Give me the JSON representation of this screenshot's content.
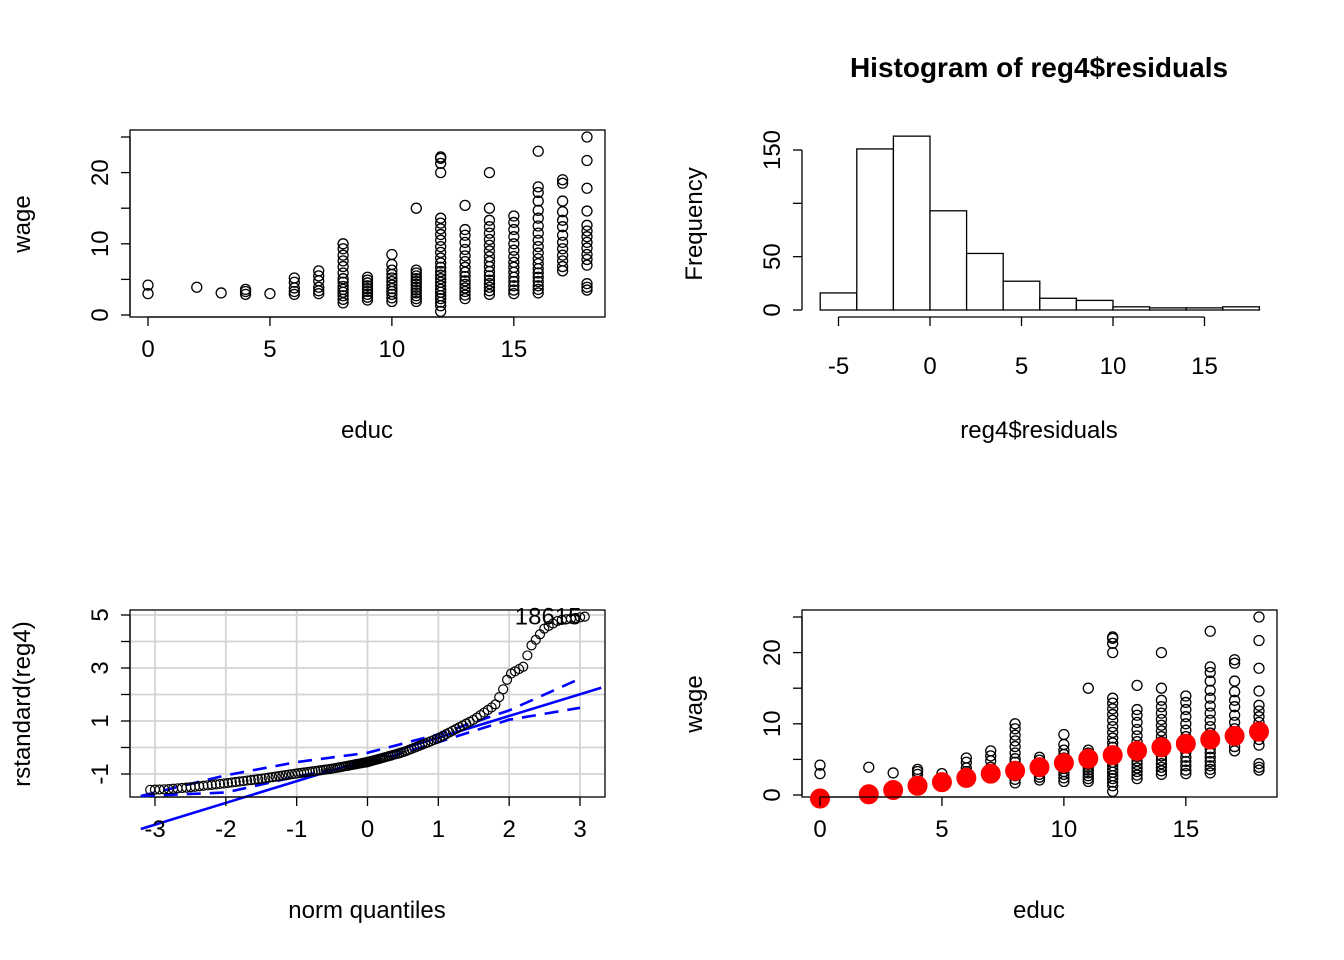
{
  "colors": {
    "points": "#000000",
    "fit_line": "#0000FF",
    "grid": "#D3D3D3",
    "means": "#FF0000"
  },
  "chart_data": [
    {
      "id": "wage-vs-educ",
      "type": "scatter",
      "title": "",
      "xlabel": "educ",
      "ylabel": "wage",
      "xlim": [
        0,
        18
      ],
      "ylim": [
        0,
        25
      ],
      "x_ticks": [
        0,
        5,
        10,
        15
      ],
      "y_ticks": [
        0,
        10,
        20
      ],
      "groups": [
        {
          "x": 0,
          "y": [
            3.0,
            4.2
          ]
        },
        {
          "x": 2,
          "y": [
            3.9
          ]
        },
        {
          "x": 3,
          "y": [
            3.1
          ]
        },
        {
          "x": 4,
          "y": [
            2.9,
            3.3,
            3.6
          ]
        },
        {
          "x": 5,
          "y": [
            3.0
          ]
        },
        {
          "x": 6,
          "y": [
            2.9,
            3.3,
            3.8,
            4.6,
            5.2
          ]
        },
        {
          "x": 7,
          "y": [
            3.0,
            3.4,
            3.9,
            4.8,
            5.5,
            6.2
          ]
        },
        {
          "x": 8,
          "y": [
            1.7,
            2.2,
            2.7,
            3.2,
            3.6,
            4.0,
            4.6,
            5.1,
            5.9,
            6.8,
            7.6,
            8.4,
            9.3,
            10.0
          ]
        },
        {
          "x": 9,
          "y": [
            2.1,
            2.5,
            2.9,
            3.3,
            3.7,
            4.1,
            4.5,
            4.9,
            5.3
          ]
        },
        {
          "x": 10,
          "y": [
            1.9,
            2.4,
            2.9,
            3.3,
            3.7,
            4.2,
            4.7,
            5.2,
            5.7,
            6.3,
            7.1,
            8.5
          ]
        },
        {
          "x": 11,
          "y": [
            1.9,
            2.3,
            2.7,
            3.1,
            3.5,
            3.9,
            4.3,
            4.7,
            5.1,
            5.5,
            5.9,
            6.3,
            15.0
          ]
        },
        {
          "x": 12,
          "y": [
            0.5,
            1.3,
            1.8,
            2.3,
            2.7,
            3.2,
            3.6,
            4.1,
            4.6,
            5.1,
            5.6,
            6.1,
            6.7,
            7.3,
            8.0,
            8.8,
            9.6,
            10.5,
            11.3,
            12.1,
            12.9,
            13.6,
            20.0,
            21.3,
            22.0,
            22.2
          ]
        },
        {
          "x": 13,
          "y": [
            2.3,
            2.8,
            3.3,
            3.8,
            4.3,
            4.8,
            5.4,
            6.0,
            6.7,
            7.5,
            8.3,
            9.2,
            10.2,
            11.2,
            12.0,
            15.4
          ]
        },
        {
          "x": 14,
          "y": [
            2.9,
            3.4,
            3.9,
            4.4,
            4.9,
            5.5,
            6.1,
            6.8,
            7.5,
            8.2,
            9.0,
            9.8,
            10.6,
            11.5,
            12.4,
            13.3,
            15.0,
            20.0
          ]
        },
        {
          "x": 15,
          "y": [
            3.0,
            3.5,
            4.1,
            4.7,
            5.3,
            6.0,
            6.7,
            7.4,
            8.2,
            9.1,
            10.0,
            11.0,
            12.0,
            13.0,
            13.9
          ]
        },
        {
          "x": 16,
          "y": [
            3.1,
            3.6,
            4.1,
            4.7,
            5.3,
            5.9,
            6.5,
            7.2,
            7.9,
            8.7,
            9.6,
            10.5,
            11.5,
            12.5,
            13.6,
            14.7,
            16.0,
            17.2,
            18.0,
            23.0
          ]
        },
        {
          "x": 17,
          "y": [
            6.2,
            6.8,
            7.6,
            8.4,
            9.3,
            10.2,
            11.2,
            12.4,
            13.3,
            14.5,
            16.0,
            18.5,
            19.0
          ]
        },
        {
          "x": 18,
          "y": [
            3.5,
            3.9,
            4.4,
            7.0,
            7.8,
            8.5,
            9.4,
            10.2,
            11.0,
            11.8,
            12.6,
            14.6,
            17.8,
            21.7,
            25.0
          ]
        }
      ]
    },
    {
      "id": "residual-histogram",
      "type": "bar",
      "title": "Histogram of reg4$residuals",
      "xlabel": "reg4$residuals",
      "ylabel": "Frequency",
      "xlim": [
        -6,
        18
      ],
      "ylim": [
        0,
        165
      ],
      "x_ticks": [
        -5,
        0,
        5,
        10,
        15
      ],
      "y_ticks": [
        0,
        50,
        100,
        150
      ],
      "y_tick_labels": [
        "0",
        "50",
        "",
        "150"
      ],
      "bin_width": 2,
      "bin_starts": [
        -6,
        -4,
        -2,
        0,
        2,
        4,
        6,
        8,
        10,
        12,
        14,
        16
      ],
      "values": [
        16,
        151,
        163,
        93,
        53,
        27,
        11,
        9,
        3,
        2,
        2,
        3
      ]
    },
    {
      "id": "qq-plot",
      "type": "scatter",
      "title": "",
      "xlabel": "norm quantiles",
      "ylabel": "rstandard(reg4)",
      "xlim": [
        -3.2,
        3.3
      ],
      "ylim": [
        -1.8,
        5.1
      ],
      "x_ticks": [
        -3,
        -2,
        -1,
        0,
        1,
        2,
        3
      ],
      "y_ticks": [
        -1,
        1,
        3,
        5
      ],
      "y_minor_ticks": [
        -1,
        0,
        1,
        2,
        3,
        4,
        5
      ],
      "curve_knots": [
        [
          -3.1,
          -1.6
        ],
        [
          -2.8,
          -1.57
        ],
        [
          -2.5,
          -1.5
        ],
        [
          -2.0,
          -1.35
        ],
        [
          -1.5,
          -1.18
        ],
        [
          -1.0,
          -0.98
        ],
        [
          -0.5,
          -0.8
        ],
        [
          0.0,
          -0.55
        ],
        [
          0.5,
          -0.18
        ],
        [
          1.0,
          0.35
        ],
        [
          1.5,
          1.05
        ],
        [
          1.8,
          1.6
        ],
        [
          1.9,
          2.1
        ],
        [
          2.0,
          2.75
        ],
        [
          2.2,
          3.05
        ],
        [
          2.3,
          3.8
        ],
        [
          2.5,
          4.5
        ],
        [
          2.7,
          4.8
        ],
        [
          3.1,
          4.95
        ]
      ],
      "point_count": 150,
      "fit_line": {
        "intercept": -0.45,
        "slope": 0.82
      },
      "envelope_upper": [
        [
          -3.2,
          -1.95
        ],
        [
          -2.0,
          -1.05
        ],
        [
          -1.0,
          -0.55
        ],
        [
          0.0,
          -0.2
        ],
        [
          1.0,
          0.5
        ],
        [
          2.0,
          1.4
        ],
        [
          3.0,
          2.6
        ]
      ],
      "envelope_lower": [
        [
          -3.2,
          -2.35
        ],
        [
          -2.0,
          -1.7
        ],
        [
          -1.0,
          -1.1
        ],
        [
          0.0,
          -0.6
        ],
        [
          1.0,
          0.2
        ],
        [
          2.0,
          1.05
        ],
        [
          3.0,
          1.5
        ]
      ],
      "point_labels": [
        {
          "x": 2.55,
          "y": 4.65,
          "text": "18615"
        }
      ]
    },
    {
      "id": "wage-vs-educ-with-means",
      "type": "scatter",
      "title": "",
      "xlabel": "educ",
      "ylabel": "wage",
      "xlim": [
        0,
        18
      ],
      "ylim": [
        0,
        25
      ],
      "x_ticks": [
        0,
        5,
        10,
        15
      ],
      "y_ticks": [
        0,
        10,
        20
      ],
      "group_means": [
        {
          "x": 0,
          "y": -0.5
        },
        {
          "x": 2,
          "y": 0.1
        },
        {
          "x": 3,
          "y": 0.7
        },
        {
          "x": 4,
          "y": 1.3
        },
        {
          "x": 5,
          "y": 1.8
        },
        {
          "x": 6,
          "y": 2.4
        },
        {
          "x": 7,
          "y": 3.0
        },
        {
          "x": 8,
          "y": 3.4
        },
        {
          "x": 9,
          "y": 3.9
        },
        {
          "x": 10,
          "y": 4.5
        },
        {
          "x": 11,
          "y": 5.1
        },
        {
          "x": 12,
          "y": 5.6
        },
        {
          "x": 13,
          "y": 6.2
        },
        {
          "x": 14,
          "y": 6.7
        },
        {
          "x": 15,
          "y": 7.2
        },
        {
          "x": 16,
          "y": 7.8
        },
        {
          "x": 17,
          "y": 8.3
        },
        {
          "x": 18,
          "y": 8.9
        }
      ]
    }
  ]
}
